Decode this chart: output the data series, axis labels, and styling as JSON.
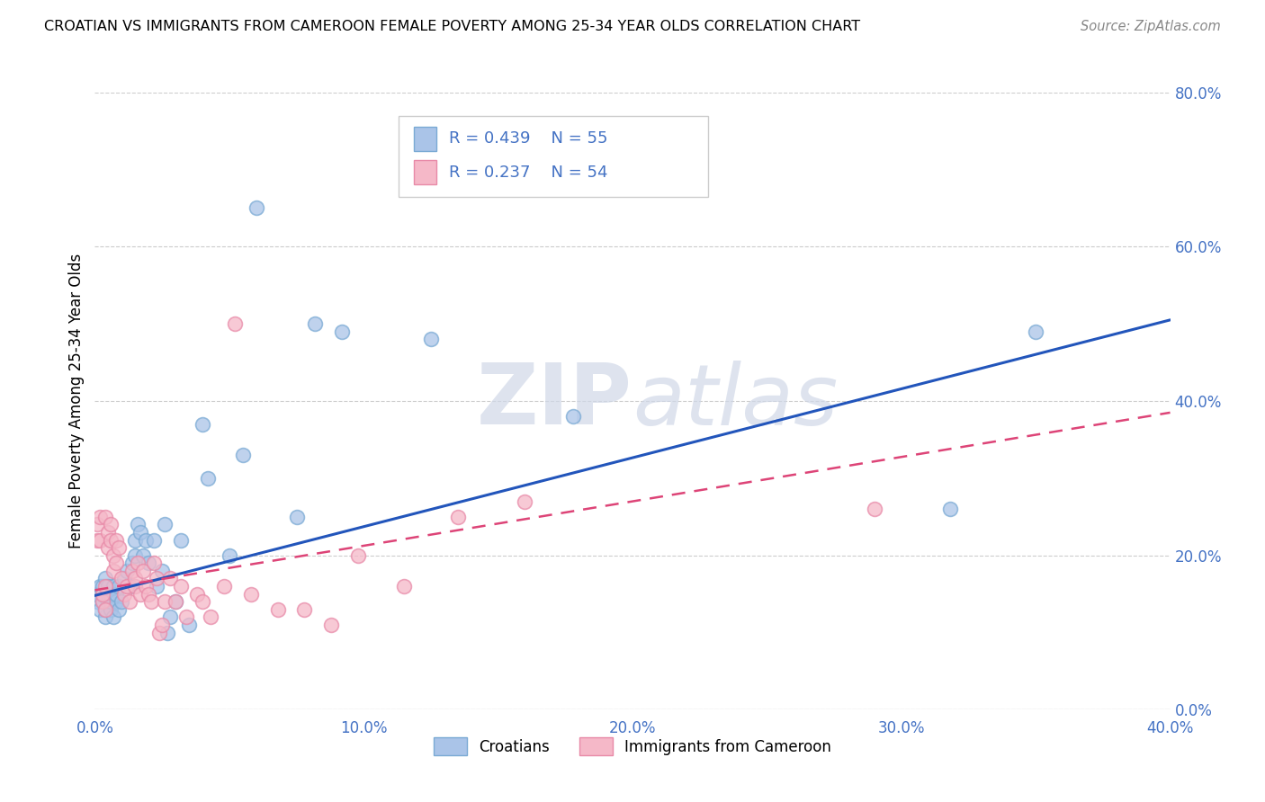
{
  "title": "CROATIAN VS IMMIGRANTS FROM CAMEROON FEMALE POVERTY AMONG 25-34 YEAR OLDS CORRELATION CHART",
  "source": "Source: ZipAtlas.com",
  "tick_color": "#4472c4",
  "ylabel": "Female Poverty Among 25-34 Year Olds",
  "xlim": [
    0.0,
    0.4
  ],
  "ylim": [
    0.0,
    0.8
  ],
  "xticks": [
    0.0,
    0.1,
    0.2,
    0.3,
    0.4
  ],
  "xtick_labels": [
    "0.0%",
    "10.0%",
    "20.0%",
    "30.0%",
    "40.0%"
  ],
  "yticks_right": [
    0.0,
    0.2,
    0.4,
    0.6,
    0.8
  ],
  "ytick_labels_right": [
    "0.0%",
    "20.0%",
    "40.0%",
    "60.0%",
    "80.0%"
  ],
  "blue_color": "#aac4e8",
  "blue_edge": "#7aaad4",
  "pink_color": "#f5b8c8",
  "pink_edge": "#e88aa8",
  "regression_blue": "#2255bb",
  "regression_pink": "#dd4477",
  "legend_r1": "R = 0.439",
  "legend_n1": "N = 55",
  "legend_r2": "R = 0.237",
  "legend_n2": "N = 54",
  "legend_label1": "Croatians",
  "legend_label2": "Immigrants from Cameroon",
  "watermark_zip": "ZIP",
  "watermark_atlas": "atlas",
  "blue_line_x0": 0.0,
  "blue_line_y0": 0.148,
  "blue_line_x1": 0.4,
  "blue_line_y1": 0.505,
  "pink_line_x0": 0.0,
  "pink_line_y0": 0.155,
  "pink_line_x1": 0.4,
  "pink_line_y1": 0.385,
  "blue_x": [
    0.001,
    0.001,
    0.002,
    0.002,
    0.003,
    0.003,
    0.003,
    0.004,
    0.004,
    0.004,
    0.005,
    0.005,
    0.005,
    0.006,
    0.006,
    0.006,
    0.007,
    0.007,
    0.008,
    0.008,
    0.009,
    0.009,
    0.01,
    0.011,
    0.012,
    0.013,
    0.014,
    0.015,
    0.015,
    0.016,
    0.017,
    0.018,
    0.019,
    0.02,
    0.022,
    0.023,
    0.025,
    0.026,
    0.027,
    0.028,
    0.03,
    0.032,
    0.035,
    0.04,
    0.042,
    0.05,
    0.055,
    0.06,
    0.075,
    0.082,
    0.092,
    0.125,
    0.178,
    0.318,
    0.35
  ],
  "blue_y": [
    0.14,
    0.15,
    0.13,
    0.16,
    0.14,
    0.15,
    0.16,
    0.12,
    0.13,
    0.17,
    0.14,
    0.15,
    0.16,
    0.13,
    0.14,
    0.15,
    0.12,
    0.16,
    0.14,
    0.15,
    0.13,
    0.16,
    0.14,
    0.17,
    0.18,
    0.16,
    0.19,
    0.22,
    0.2,
    0.24,
    0.23,
    0.2,
    0.22,
    0.19,
    0.22,
    0.16,
    0.18,
    0.24,
    0.1,
    0.12,
    0.14,
    0.22,
    0.11,
    0.37,
    0.3,
    0.2,
    0.33,
    0.65,
    0.25,
    0.5,
    0.49,
    0.48,
    0.38,
    0.26,
    0.49
  ],
  "pink_x": [
    0.001,
    0.001,
    0.002,
    0.002,
    0.003,
    0.003,
    0.004,
    0.004,
    0.004,
    0.005,
    0.005,
    0.006,
    0.006,
    0.007,
    0.007,
    0.008,
    0.008,
    0.009,
    0.01,
    0.011,
    0.012,
    0.013,
    0.014,
    0.015,
    0.015,
    0.016,
    0.017,
    0.018,
    0.019,
    0.02,
    0.021,
    0.022,
    0.023,
    0.024,
    0.025,
    0.026,
    0.028,
    0.03,
    0.032,
    0.034,
    0.038,
    0.04,
    0.043,
    0.048,
    0.052,
    0.058,
    0.068,
    0.078,
    0.088,
    0.098,
    0.115,
    0.135,
    0.16,
    0.29
  ],
  "pink_y": [
    0.24,
    0.22,
    0.25,
    0.22,
    0.14,
    0.15,
    0.13,
    0.16,
    0.25,
    0.23,
    0.21,
    0.24,
    0.22,
    0.18,
    0.2,
    0.19,
    0.22,
    0.21,
    0.17,
    0.15,
    0.16,
    0.14,
    0.18,
    0.16,
    0.17,
    0.19,
    0.15,
    0.18,
    0.16,
    0.15,
    0.14,
    0.19,
    0.17,
    0.1,
    0.11,
    0.14,
    0.17,
    0.14,
    0.16,
    0.12,
    0.15,
    0.14,
    0.12,
    0.16,
    0.5,
    0.15,
    0.13,
    0.13,
    0.11,
    0.2,
    0.16,
    0.25,
    0.27,
    0.26
  ]
}
